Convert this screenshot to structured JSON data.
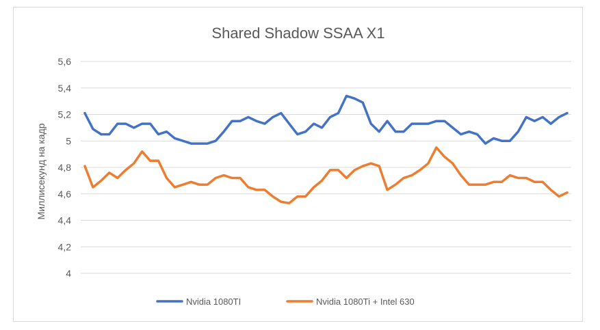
{
  "chart_data": {
    "type": "line",
    "title": "Shared Shadow SSAA X1",
    "xlabel": "",
    "ylabel": "Миллисекунд на кадр",
    "ylim": [
      4,
      5.6
    ],
    "yticks": [
      "4",
      "4,2",
      "4,4",
      "4,6",
      "4,8",
      "5",
      "5,2",
      "5,4",
      "5,6"
    ],
    "grid": "horizontal",
    "legend_position": "bottom",
    "series": [
      {
        "name": "Nvidia 1080TI",
        "color": "#4472C4",
        "values": [
          5.21,
          5.09,
          5.05,
          5.05,
          5.13,
          5.13,
          5.1,
          5.13,
          5.13,
          5.05,
          5.07,
          5.02,
          5.0,
          4.98,
          4.98,
          4.98,
          5.0,
          5.07,
          5.15,
          5.15,
          5.18,
          5.15,
          5.13,
          5.18,
          5.21,
          5.13,
          5.05,
          5.07,
          5.13,
          5.1,
          5.18,
          5.21,
          5.34,
          5.32,
          5.29,
          5.13,
          5.07,
          5.15,
          5.07,
          5.07,
          5.13,
          5.13,
          5.13,
          5.15,
          5.15,
          5.1,
          5.05,
          5.07,
          5.05,
          4.98,
          5.02,
          5.0,
          5.0,
          5.07,
          5.18,
          5.15,
          5.18,
          5.13,
          5.18,
          5.21
        ]
      },
      {
        "name": "Nvidia 1080Ti + Intel 630",
        "color": "#ED7D31",
        "values": [
          4.81,
          4.65,
          4.7,
          4.76,
          4.72,
          4.78,
          4.83,
          4.92,
          4.85,
          4.85,
          4.72,
          4.65,
          4.67,
          4.69,
          4.67,
          4.67,
          4.72,
          4.74,
          4.72,
          4.72,
          4.65,
          4.63,
          4.63,
          4.58,
          4.54,
          4.53,
          4.58,
          4.58,
          4.65,
          4.7,
          4.78,
          4.78,
          4.72,
          4.78,
          4.81,
          4.83,
          4.81,
          4.63,
          4.67,
          4.72,
          4.74,
          4.78,
          4.83,
          4.95,
          4.88,
          4.83,
          4.74,
          4.67,
          4.67,
          4.67,
          4.69,
          4.69,
          4.74,
          4.72,
          4.72,
          4.69,
          4.69,
          4.63,
          4.58,
          4.61
        ]
      }
    ]
  }
}
